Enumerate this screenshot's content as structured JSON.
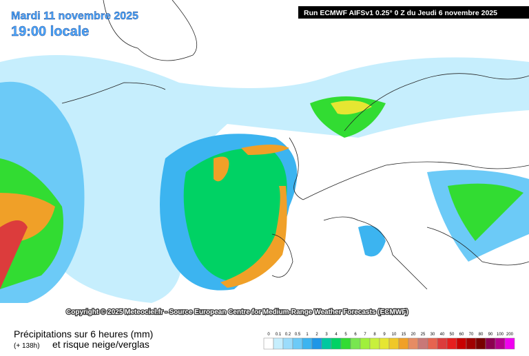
{
  "header": {
    "date": "Mardi 11 novembre 2025",
    "time": "19:00 locale",
    "run": "Run ECMWF AIFSv1 0.25° 0 Z du Jeudi 6 novembre 2025"
  },
  "copyright": "Copyright © 2025 Meteociel.fr - Source European Centre for Medium-Range Weather Forecasts (ECMWF)",
  "legend": {
    "title": "Précipitations sur 6 heures (mm)",
    "lead": "(+ 138h)",
    "subtitle": "et risque neige/verglas",
    "levels": [
      0,
      0.1,
      0.2,
      0.5,
      1,
      2,
      3,
      4,
      5,
      6,
      7,
      8,
      9,
      10,
      15,
      20,
      25,
      30,
      40,
      50,
      60,
      70,
      80,
      90,
      100,
      200
    ],
    "colors": [
      "#ffffff",
      "#c6eefd",
      "#9bdcfb",
      "#6ccaf7",
      "#3cb4f0",
      "#1e96e6",
      "#00c8a0",
      "#00d264",
      "#32dc32",
      "#78e650",
      "#a0f03c",
      "#c8f03c",
      "#e6e632",
      "#f0c828",
      "#f0a028",
      "#e68c64",
      "#c87878",
      "#e66450",
      "#dc3c3c",
      "#e61e1e",
      "#c80000",
      "#a00000",
      "#780000",
      "#8c0050",
      "#b4008c",
      "#f000f0"
    ]
  }
}
